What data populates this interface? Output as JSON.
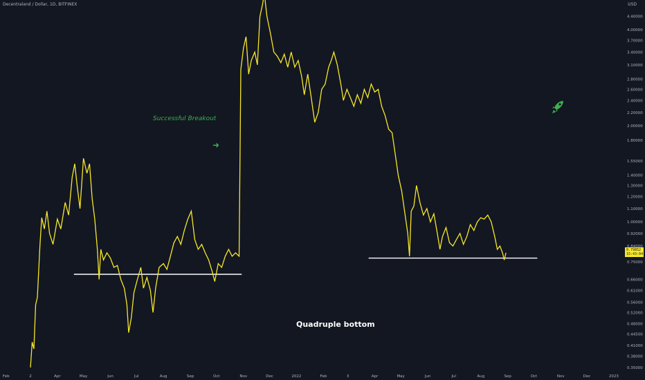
{
  "header": {
    "symbol_line": "Decentraland / Dollar, 1D, BITFINEX",
    "currency": "USD"
  },
  "annotations": {
    "breakout": "Successful Breakout",
    "bottom": "Quadruple bottom"
  },
  "icons": {
    "arrow": "arrow-right-icon",
    "rocket": "rocket-icon"
  },
  "colors": {
    "background": "#131722",
    "price_line": "#f7e82a",
    "support": "#ffffff",
    "annotation": "#3cb04f"
  },
  "price_tag": {
    "price": "0.79852",
    "countdown": "15:43:04"
  },
  "chart_data": {
    "type": "line",
    "scale": "log",
    "ylim": [
      0.336,
      4.95
    ],
    "ylabel": "USD",
    "xlabel": "",
    "x_ticks": [
      "Feb",
      "2",
      "Apr",
      "May",
      "Jun",
      "Jul",
      "Aug",
      "Sep",
      "Oct",
      "Nov",
      "Dec",
      "2022",
      "Feb",
      "3",
      "Apr",
      "May",
      "Jun",
      "Jul",
      "Aug",
      "Sep",
      "Oct",
      "Nov",
      "Dec",
      "2023"
    ],
    "y_ticks": [
      "4.40000",
      "4.00000",
      "3.70000",
      "3.40000",
      "3.10000",
      "2.80000",
      "2.60000",
      "2.40000",
      "2.20000",
      "2.00000",
      "1.80000",
      "1.55000",
      "1.40000",
      "1.30000",
      "1.20000",
      "1.10000",
      "1.00000",
      "0.92000",
      "0.84000",
      "0.75000",
      "0.66000",
      "0.61000",
      "0.56000",
      "0.52000",
      "0.48000",
      "0.44500",
      "0.41000",
      "0.38000",
      "0.35000"
    ],
    "series": [
      {
        "values": [
          [
            "2021-03-01",
            0.35
          ],
          [
            "2021-03-03",
            0.42
          ],
          [
            "2021-03-05",
            0.4
          ],
          [
            "2021-03-07",
            0.55
          ],
          [
            "2021-03-09",
            0.58
          ],
          [
            "2021-03-12",
            0.85
          ],
          [
            "2021-03-14",
            1.03
          ],
          [
            "2021-03-17",
            0.95
          ],
          [
            "2021-03-20",
            1.08
          ],
          [
            "2021-03-23",
            0.92
          ],
          [
            "2021-03-27",
            0.85
          ],
          [
            "2021-04-01",
            1.02
          ],
          [
            "2021-04-05",
            0.95
          ],
          [
            "2021-04-10",
            1.15
          ],
          [
            "2021-04-14",
            1.05
          ],
          [
            "2021-04-18",
            1.38
          ],
          [
            "2021-04-21",
            1.52
          ],
          [
            "2021-04-24",
            1.28
          ],
          [
            "2021-04-27",
            1.1
          ],
          [
            "2021-05-01",
            1.58
          ],
          [
            "2021-05-05",
            1.42
          ],
          [
            "2021-05-08",
            1.52
          ],
          [
            "2021-05-11",
            1.18
          ],
          [
            "2021-05-14",
            1.02
          ],
          [
            "2021-05-17",
            0.82
          ],
          [
            "2021-05-19",
            0.66
          ],
          [
            "2021-05-21",
            0.82
          ],
          [
            "2021-05-24",
            0.76
          ],
          [
            "2021-05-28",
            0.8
          ],
          [
            "2021-06-01",
            0.77
          ],
          [
            "2021-06-05",
            0.72
          ],
          [
            "2021-06-09",
            0.73
          ],
          [
            "2021-06-13",
            0.66
          ],
          [
            "2021-06-17",
            0.62
          ],
          [
            "2021-06-20",
            0.55
          ],
          [
            "2021-06-22",
            0.45
          ],
          [
            "2021-06-25",
            0.5
          ],
          [
            "2021-06-28",
            0.6
          ],
          [
            "2021-07-02",
            0.66
          ],
          [
            "2021-07-06",
            0.72
          ],
          [
            "2021-07-09",
            0.62
          ],
          [
            "2021-07-13",
            0.67
          ],
          [
            "2021-07-17",
            0.61
          ],
          [
            "2021-07-20",
            0.52
          ],
          [
            "2021-07-23",
            0.62
          ],
          [
            "2021-07-27",
            0.72
          ],
          [
            "2021-08-01",
            0.74
          ],
          [
            "2021-08-05",
            0.71
          ],
          [
            "2021-08-09",
            0.78
          ],
          [
            "2021-08-13",
            0.86
          ],
          [
            "2021-08-17",
            0.9
          ],
          [
            "2021-08-21",
            0.85
          ],
          [
            "2021-08-25",
            0.94
          ],
          [
            "2021-08-29",
            1.02
          ],
          [
            "2021-09-02",
            1.08
          ],
          [
            "2021-09-06",
            0.88
          ],
          [
            "2021-09-10",
            0.82
          ],
          [
            "2021-09-14",
            0.85
          ],
          [
            "2021-09-18",
            0.8
          ],
          [
            "2021-09-22",
            0.76
          ],
          [
            "2021-09-26",
            0.7
          ],
          [
            "2021-09-29",
            0.65
          ],
          [
            "2021-10-03",
            0.74
          ],
          [
            "2021-10-07",
            0.72
          ],
          [
            "2021-10-11",
            0.78
          ],
          [
            "2021-10-15",
            0.82
          ],
          [
            "2021-10-19",
            0.78
          ],
          [
            "2021-10-23",
            0.8
          ],
          [
            "2021-10-27",
            0.78
          ],
          [
            "2021-10-29",
            3.0
          ],
          [
            "2021-11-01",
            3.5
          ],
          [
            "2021-11-04",
            3.8
          ],
          [
            "2021-11-07",
            2.9
          ],
          [
            "2021-11-10",
            3.2
          ],
          [
            "2021-11-14",
            3.4
          ],
          [
            "2021-11-17",
            3.1
          ],
          [
            "2021-11-20",
            4.4
          ],
          [
            "2021-11-23",
            4.8
          ],
          [
            "2021-11-25",
            5.2
          ],
          [
            "2021-11-28",
            4.4
          ],
          [
            "2021-12-02",
            3.9
          ],
          [
            "2021-12-06",
            3.4
          ],
          [
            "2021-12-10",
            3.3
          ],
          [
            "2021-12-14",
            3.15
          ],
          [
            "2021-12-18",
            3.35
          ],
          [
            "2021-12-22",
            3.05
          ],
          [
            "2021-12-26",
            3.4
          ],
          [
            "2021-12-30",
            3.05
          ],
          [
            "2022-01-03",
            3.2
          ],
          [
            "2022-01-07",
            2.85
          ],
          [
            "2022-01-10",
            2.5
          ],
          [
            "2022-01-14",
            2.9
          ],
          [
            "2022-01-18",
            2.45
          ],
          [
            "2022-01-22",
            2.05
          ],
          [
            "2022-01-26",
            2.2
          ],
          [
            "2022-01-30",
            2.6
          ],
          [
            "2022-02-03",
            2.7
          ],
          [
            "2022-02-07",
            3.05
          ],
          [
            "2022-02-10",
            3.2
          ],
          [
            "2022-02-13",
            3.4
          ],
          [
            "2022-02-17",
            3.1
          ],
          [
            "2022-02-21",
            2.7
          ],
          [
            "2022-02-24",
            2.4
          ],
          [
            "2022-02-28",
            2.6
          ],
          [
            "2022-03-04",
            2.45
          ],
          [
            "2022-03-08",
            2.3
          ],
          [
            "2022-03-12",
            2.5
          ],
          [
            "2022-03-16",
            2.35
          ],
          [
            "2022-03-20",
            2.6
          ],
          [
            "2022-03-24",
            2.45
          ],
          [
            "2022-03-28",
            2.7
          ],
          [
            "2022-04-01",
            2.55
          ],
          [
            "2022-04-05",
            2.6
          ],
          [
            "2022-04-09",
            2.3
          ],
          [
            "2022-04-13",
            2.15
          ],
          [
            "2022-04-17",
            1.95
          ],
          [
            "2022-04-21",
            1.9
          ],
          [
            "2022-04-25",
            1.6
          ],
          [
            "2022-04-28",
            1.4
          ],
          [
            "2022-05-02",
            1.25
          ],
          [
            "2022-05-06",
            1.05
          ],
          [
            "2022-05-09",
            0.92
          ],
          [
            "2022-05-11",
            0.78
          ],
          [
            "2022-05-13",
            1.08
          ],
          [
            "2022-05-16",
            1.12
          ],
          [
            "2022-05-19",
            1.3
          ],
          [
            "2022-05-23",
            1.15
          ],
          [
            "2022-05-27",
            1.05
          ],
          [
            "2022-05-31",
            1.1
          ],
          [
            "2022-06-04",
            1.0
          ],
          [
            "2022-06-08",
            1.06
          ],
          [
            "2022-06-12",
            0.92
          ],
          [
            "2022-06-15",
            0.82
          ],
          [
            "2022-06-18",
            0.9
          ],
          [
            "2022-06-22",
            0.96
          ],
          [
            "2022-06-26",
            0.86
          ],
          [
            "2022-06-30",
            0.84
          ],
          [
            "2022-07-04",
            0.88
          ],
          [
            "2022-07-08",
            0.92
          ],
          [
            "2022-07-12",
            0.85
          ],
          [
            "2022-07-16",
            0.9
          ],
          [
            "2022-07-20",
            0.98
          ],
          [
            "2022-07-24",
            0.94
          ],
          [
            "2022-07-28",
            1.0
          ],
          [
            "2022-08-01",
            1.03
          ],
          [
            "2022-08-05",
            1.02
          ],
          [
            "2022-08-09",
            1.05
          ],
          [
            "2022-08-13",
            1.0
          ],
          [
            "2022-08-17",
            0.9
          ],
          [
            "2022-08-20",
            0.82
          ],
          [
            "2022-08-23",
            0.84
          ],
          [
            "2022-08-26",
            0.8
          ],
          [
            "2022-08-28",
            0.76
          ],
          [
            "2022-08-30",
            0.8
          ]
        ]
      }
    ],
    "support_lines": [
      {
        "from": "2021-04-20",
        "to": "2021-10-30",
        "price": 0.685
      },
      {
        "from": "2022-03-25",
        "to": "2022-10-05",
        "price": 0.77
      }
    ],
    "grid": false,
    "legend": "none"
  }
}
